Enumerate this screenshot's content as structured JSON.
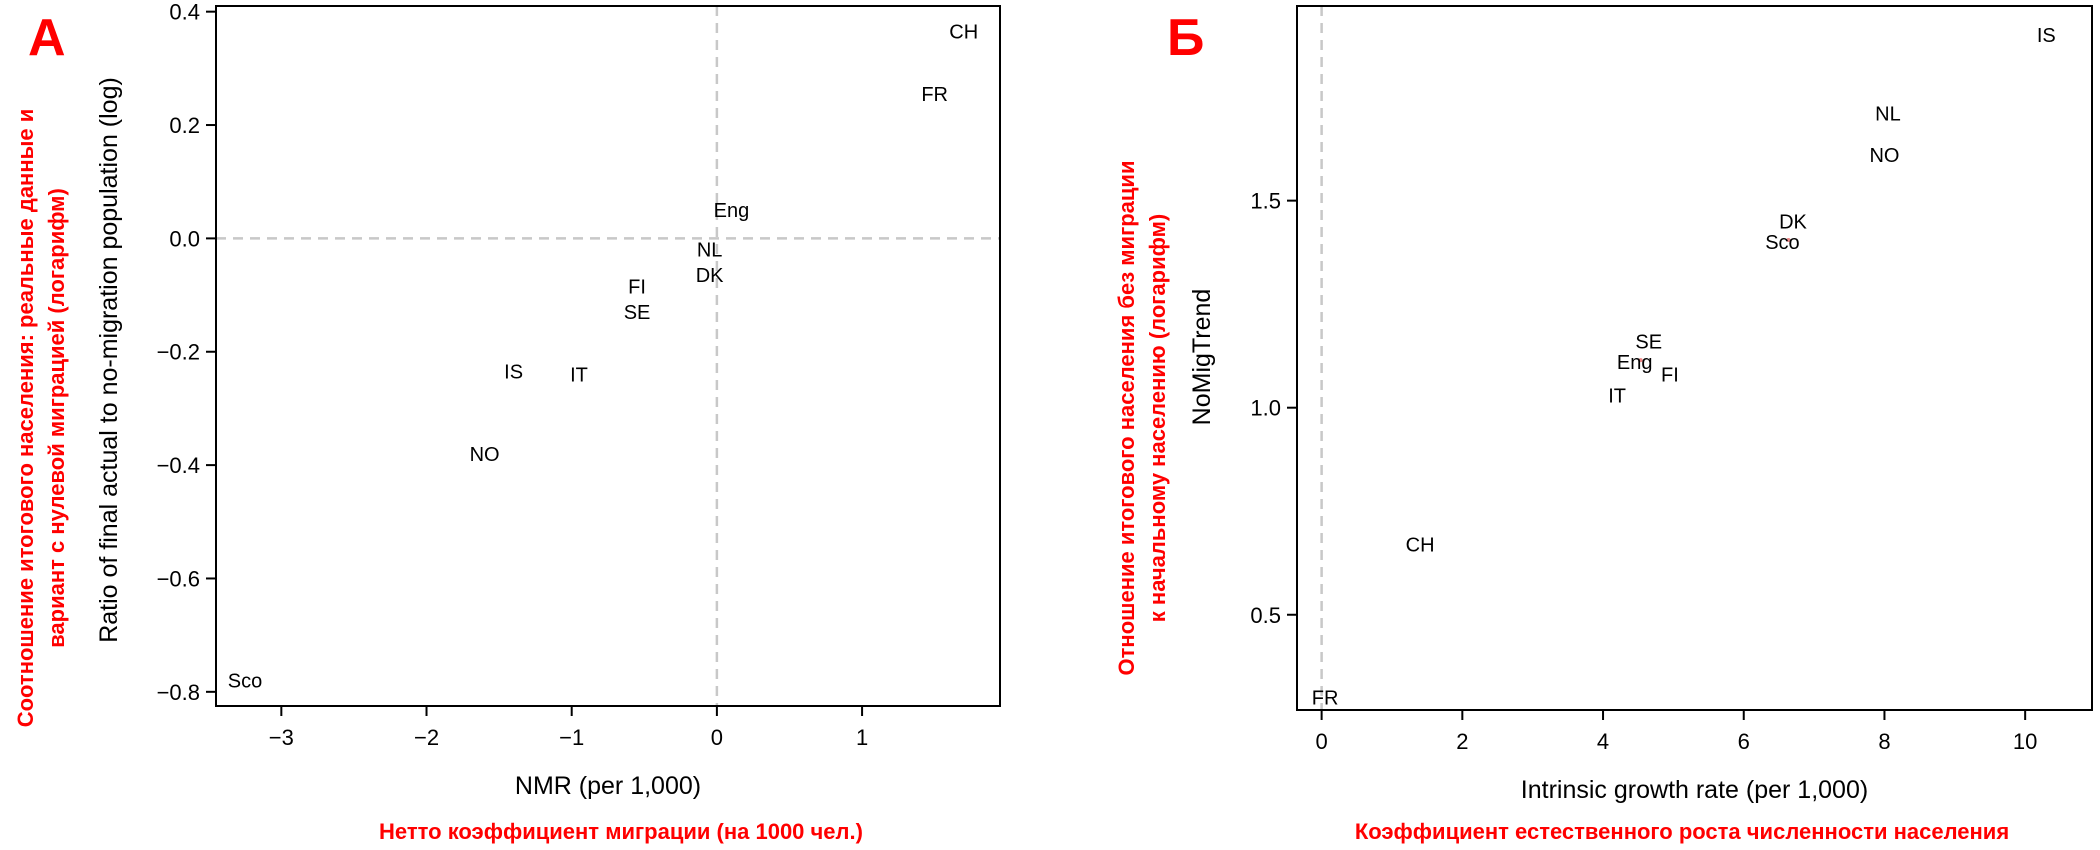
{
  "chart_data": [
    {
      "type": "scatter",
      "panel_letter": "А",
      "xlabel": "NMR (per 1,000)",
      "ylabel": "Ratio of final actual to no-migration population (log)",
      "xlabel_ru": "Нетто коэффициент миграции (на 1000 чел.)",
      "ylabel_ru_line1": "Соотношение итогового населения: реальные данные и",
      "ylabel_ru_line2": "вариант с нулевой миграцией (логарифм)",
      "xlim": [
        -3.45,
        1.95
      ],
      "ylim": [
        -0.825,
        0.41
      ],
      "xticks": [
        -3,
        -2,
        -1,
        0,
        1
      ],
      "xtick_labels": [
        "−3",
        "−2",
        "−1",
        "0",
        "1"
      ],
      "yticks": [
        -0.8,
        -0.6,
        -0.4,
        -0.2,
        0.0,
        0.2,
        0.4
      ],
      "ytick_labels": [
        "−0.8",
        "−0.6",
        "−0.4",
        "−0.2",
        "0.0",
        "0.2",
        "0.4"
      ],
      "ref_lines": {
        "x": 0,
        "y": 0
      },
      "points": [
        {
          "label": "CH",
          "x": 1.7,
          "y": 0.365
        },
        {
          "label": "FR",
          "x": 1.5,
          "y": 0.255
        },
        {
          "label": "Eng",
          "x": 0.1,
          "y": 0.05
        },
        {
          "label": "NL",
          "x": -0.05,
          "y": -0.02
        },
        {
          "label": "DK",
          "x": -0.05,
          "y": -0.065
        },
        {
          "label": "FI",
          "x": -0.55,
          "y": -0.085
        },
        {
          "label": "SE",
          "x": -0.55,
          "y": -0.13
        },
        {
          "label": "IS",
          "x": -1.4,
          "y": -0.235
        },
        {
          "label": "IT",
          "x": -0.95,
          "y": -0.24
        },
        {
          "label": "NO",
          "x": -1.6,
          "y": -0.38
        },
        {
          "label": "Sco",
          "x": -3.25,
          "y": -0.78
        }
      ]
    },
    {
      "type": "scatter",
      "panel_letter": "Б",
      "xlabel": "Intrinsic growth rate (per 1,000)",
      "ylabel": "NoMigTrend",
      "xlabel_ru": "Коэффициент естественного роста численности населения",
      "ylabel_ru_line1": "Отношение итогового населения без миграции",
      "ylabel_ru_line2": "к начальному населению (логарифм)",
      "xlim": [
        -0.35,
        10.95
      ],
      "ylim": [
        0.27,
        1.97
      ],
      "xticks": [
        0,
        2,
        4,
        6,
        8,
        10
      ],
      "xtick_labels": [
        "0",
        "2",
        "4",
        "6",
        "8",
        "10"
      ],
      "yticks": [
        0.5,
        1.0,
        1.5
      ],
      "ytick_labels": [
        "0.5",
        "1.0",
        "1.5"
      ],
      "ref_lines": {
        "x": 0
      },
      "points": [
        {
          "label": "IS",
          "x": 10.3,
          "y": 1.9
        },
        {
          "label": "NL",
          "x": 8.05,
          "y": 1.71
        },
        {
          "label": "NO",
          "x": 8.0,
          "y": 1.61
        },
        {
          "label": "DK",
          "x": 6.7,
          "y": 1.45
        },
        {
          "label": "Sco",
          "x": 6.55,
          "y": 1.4
        },
        {
          "label": "SE",
          "x": 4.65,
          "y": 1.16
        },
        {
          "label": "Eng",
          "x": 4.45,
          "y": 1.11
        },
        {
          "label": "FI",
          "x": 4.95,
          "y": 1.08
        },
        {
          "label": "IT",
          "x": 4.2,
          "y": 1.03
        },
        {
          "label": "CH",
          "x": 1.4,
          "y": 0.67
        },
        {
          "label": "FR",
          "x": 0.05,
          "y": 0.3
        }
      ],
      "marker_colors": [
        "#e88",
        "#e88"
      ]
    }
  ]
}
